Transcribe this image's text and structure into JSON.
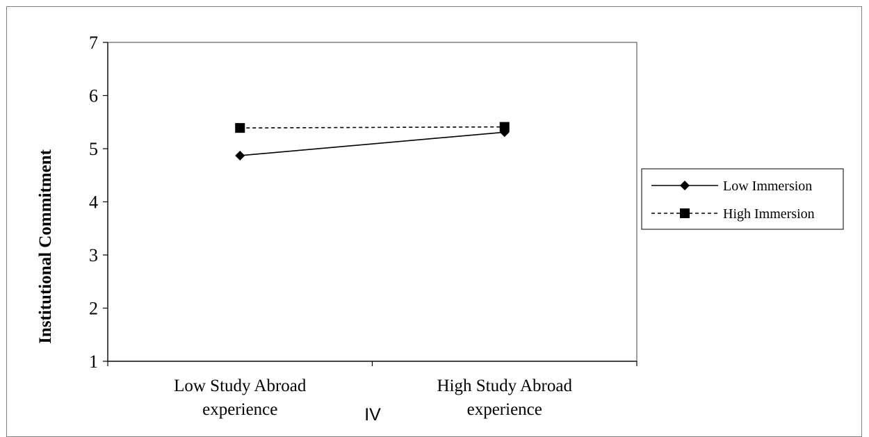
{
  "chart_data": {
    "type": "line",
    "categories": [
      "Low Study Abroad experience",
      "High Study Abroad experience"
    ],
    "category_lines": [
      [
        "Low Study Abroad",
        "experience"
      ],
      [
        "High Study Abroad",
        "experience"
      ]
    ],
    "series": [
      {
        "name": "Low Immersion",
        "values": [
          4.87,
          5.31
        ],
        "marker": "diamond",
        "dash": "solid"
      },
      {
        "name": "High Immersion",
        "values": [
          5.39,
          5.41
        ],
        "marker": "square",
        "dash": "dashed"
      }
    ],
    "ylabel": "Institutional Commitment",
    "xlabel": "IV",
    "ylim": [
      1,
      7
    ],
    "yticks": [
      1,
      2,
      3,
      4,
      5,
      6,
      7
    ],
    "grid": false,
    "legend_position": "right"
  }
}
